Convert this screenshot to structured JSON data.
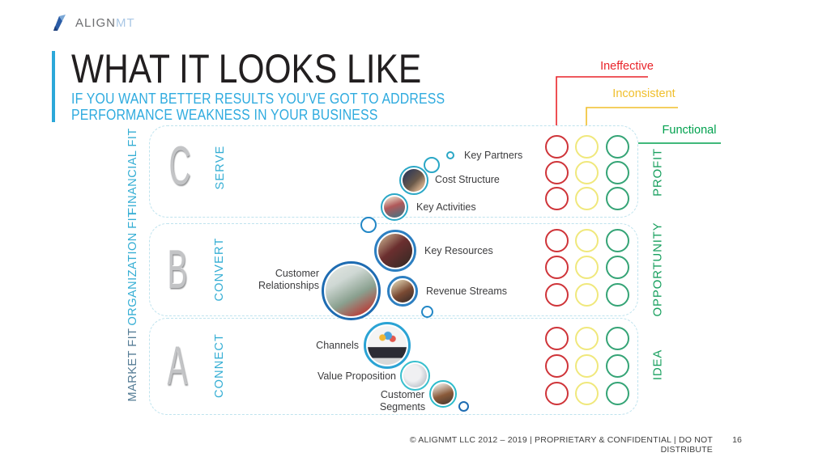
{
  "logo": {
    "align": "ALIGN",
    "mt": "MT"
  },
  "header": {
    "title": "WHAT IT LOOKS LIKE",
    "subtitle_line1": "IF YOU WANT BETTER RESULTS YOU'VE GOT TO ADDRESS",
    "subtitle_line2": "PERFORMANCE WEAKNESS IN YOUR BUSINESS"
  },
  "legend": {
    "items": [
      {
        "label": "Ineffective",
        "color": "#e9242a"
      },
      {
        "label": "Inconsistent",
        "color": "#f0bf2c"
      },
      {
        "label": "Functional",
        "color": "#00a14e"
      }
    ]
  },
  "bands": [
    {
      "letter": "C",
      "verb": "SERVE",
      "fit": "FINANCIAL FIT",
      "outcome": "PROFIT"
    },
    {
      "letter": "B",
      "verb": "CONVERT",
      "fit": "ORGANIZATION FIT",
      "outcome": "OPPORTUNITY"
    },
    {
      "letter": "A",
      "verb": "CONNECT",
      "fit": "MARKET FIT",
      "outcome": "IDEA"
    }
  ],
  "canvas_items": [
    {
      "id": "key-partners",
      "label": "Key Partners"
    },
    {
      "id": "cost-structure",
      "label": "Cost Structure"
    },
    {
      "id": "key-activities",
      "label": "Key Activities"
    },
    {
      "id": "key-resources",
      "label": "Key Resources"
    },
    {
      "id": "customer-relationships",
      "label": "Customer Relationships"
    },
    {
      "id": "revenue-streams",
      "label": "Revenue Streams"
    },
    {
      "id": "channels",
      "label": "Channels"
    },
    {
      "id": "value-proposition",
      "label": "Value Proposition"
    },
    {
      "id": "customer-segments",
      "label": "Customer Segments"
    }
  ],
  "status_grid": {
    "rows_per_band": 3,
    "columns": [
      {
        "status": "ineffective",
        "color": "#cf3439"
      },
      {
        "status": "inconsistent",
        "color": "#f0e87c"
      },
      {
        "status": "functional",
        "color": "#35a476"
      }
    ]
  },
  "footer": {
    "text": "© ALIGNMT LLC 2012 – 2019 | PROPRIETARY & CONFIDENTIAL | DO NOT DISTRIBUTE",
    "page": "16"
  }
}
